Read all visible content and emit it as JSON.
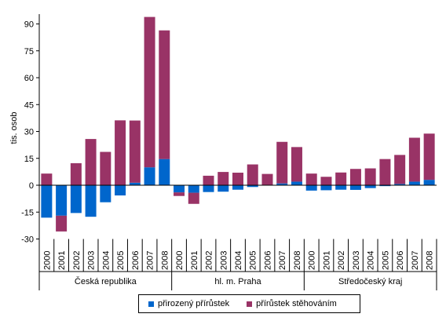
{
  "chart_data": {
    "type": "bar",
    "stacked": true,
    "ylabel": "tis. osob",
    "ylim": [
      -30,
      95
    ],
    "yticks": [
      -30,
      -15,
      0,
      15,
      30,
      45,
      60,
      75,
      90
    ],
    "groups": [
      {
        "name": "Česká republika",
        "years": [
          "2000",
          "2001",
          "2002",
          "2003",
          "2004",
          "2005",
          "2006",
          "2007",
          "2008"
        ]
      },
      {
        "name": "hl. m. Praha",
        "years": [
          "2000",
          "2001",
          "2002",
          "2003",
          "2004",
          "2005",
          "2006",
          "2007",
          "2008"
        ]
      },
      {
        "name": "Středočeský kraj",
        "years": [
          "2000",
          "2001",
          "2002",
          "2003",
          "2004",
          "2005",
          "2006",
          "2007",
          "2008"
        ]
      }
    ],
    "series": [
      {
        "name": "přirozený přírůstek",
        "color": "#0066cc",
        "values": [
          -18.1,
          -17.0,
          -15.5,
          -17.6,
          -9.5,
          -5.7,
          1.4,
          10.0,
          14.6,
          -4.0,
          -4.2,
          -3.8,
          -3.6,
          -2.5,
          -1.0,
          0.0,
          1.0,
          2.0,
          -3.0,
          -2.8,
          -2.5,
          -2.6,
          -1.6,
          -0.5,
          0.7,
          2.0,
          3.0
        ]
      },
      {
        "name": "přírůstek stěhováním",
        "color": "#993366",
        "values": [
          6.5,
          -8.8,
          12.3,
          25.8,
          18.6,
          36.2,
          34.7,
          83.9,
          71.8,
          -2.0,
          -6.2,
          5.3,
          7.4,
          7.0,
          11.6,
          6.3,
          23.2,
          19.3,
          6.5,
          4.7,
          7.1,
          9.1,
          9.4,
          14.6,
          16.2,
          24.5,
          25.8
        ]
      }
    ],
    "grid": false,
    "legend_position": "bottom"
  },
  "legend": {
    "items": [
      {
        "label": "přirozený přírůstek",
        "color": "#0066cc"
      },
      {
        "label": "přírůstek stěhováním",
        "color": "#993366"
      }
    ]
  }
}
